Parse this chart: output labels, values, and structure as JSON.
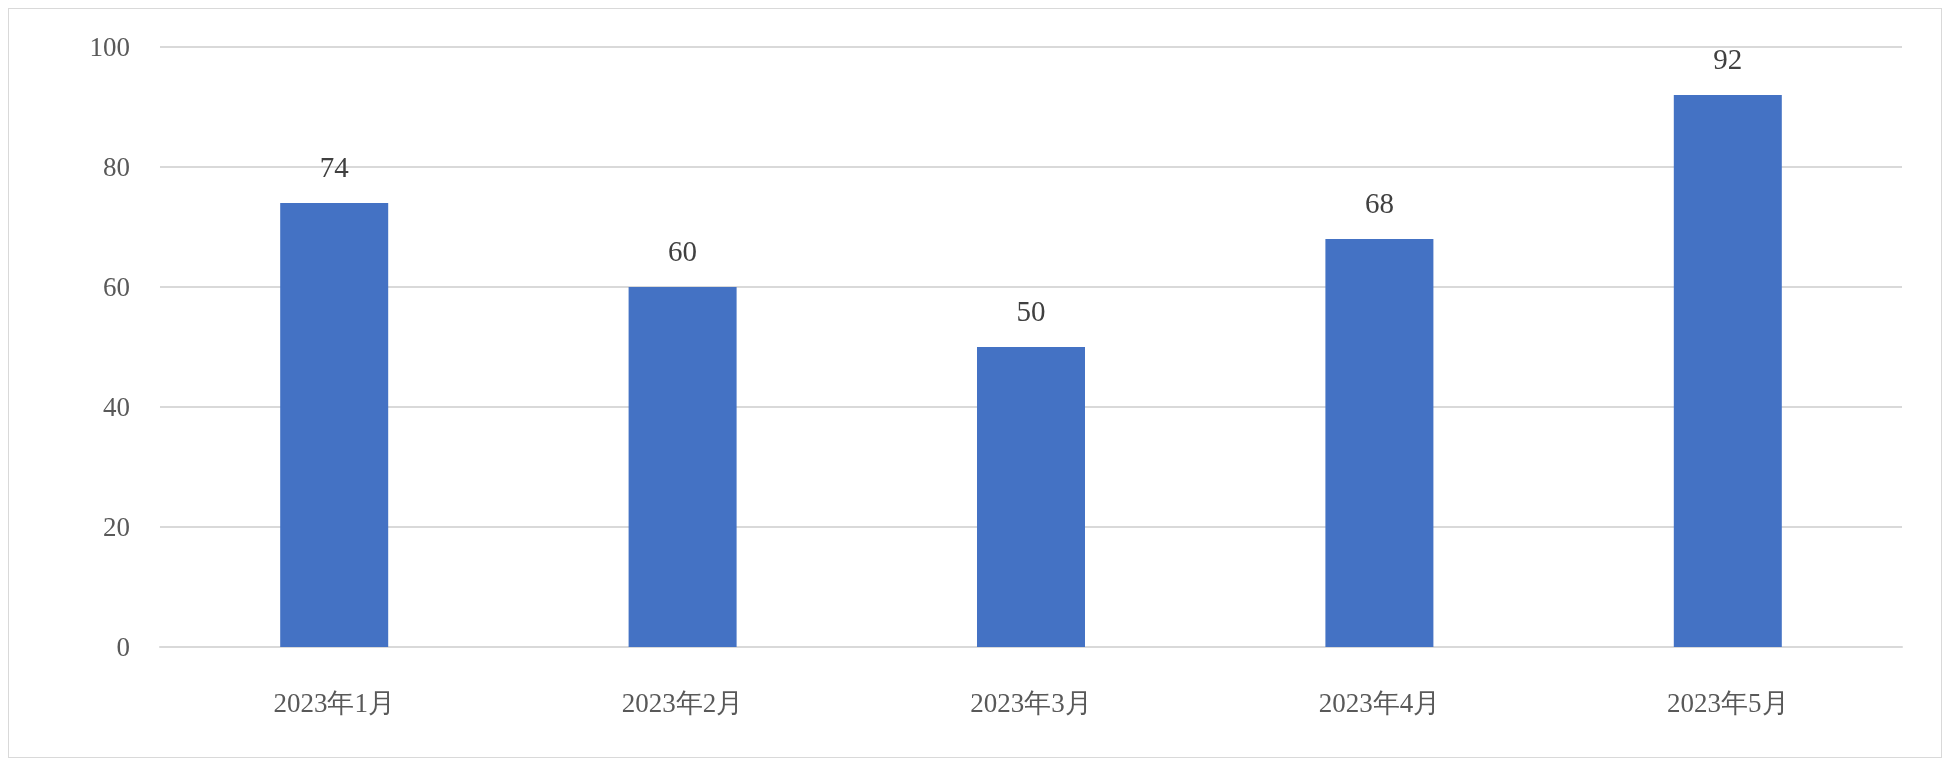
{
  "chart_data": {
    "type": "bar",
    "categories": [
      "2023年1月",
      "2023年2月",
      "2023年3月",
      "2023年4月",
      "2023年5月"
    ],
    "values": [
      74,
      60,
      50,
      68,
      92
    ],
    "color": "#4472c4",
    "ylim": [
      0,
      100
    ],
    "yticks": [
      0,
      20,
      40,
      60,
      80,
      100
    ],
    "grid": "y",
    "data_labels": true
  }
}
